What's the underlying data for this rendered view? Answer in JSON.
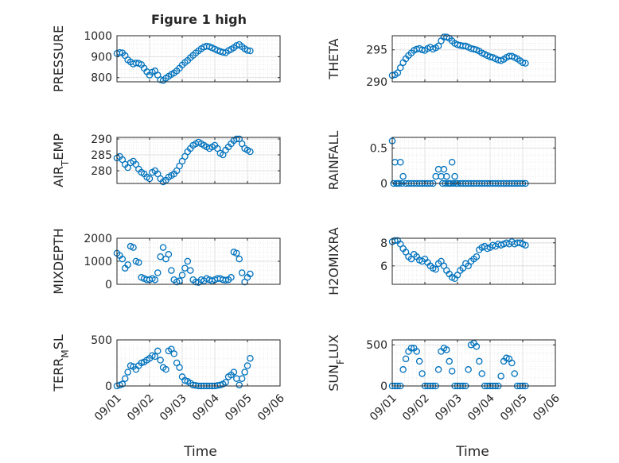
{
  "figure": {
    "title": "Figure 1 high",
    "xlabel": "Time",
    "x_ticks": [
      "09/01",
      "09/02",
      "09/03",
      "09/04",
      "09/05",
      "09/06"
    ],
    "marker_color": "#0072BD",
    "grid_color": "#d9d9d9",
    "axis_color": "#262626"
  },
  "chart_data": [
    {
      "type": "scatter",
      "ylabel": "PRESSURE",
      "ylim": [
        780,
        1000
      ],
      "yticks": [
        800,
        900,
        1000
      ],
      "grid": true,
      "x": [
        "09/01 00:00",
        "09/01 02:00",
        "09/01 04:00",
        "09/01 06:00",
        "09/01 08:00",
        "09/01 10:00",
        "09/01 12:00",
        "09/01 14:00",
        "09/01 16:00",
        "09/01 18:00",
        "09/01 20:00",
        "09/01 22:00",
        "09/02 00:00",
        "09/02 02:00",
        "09/02 04:00",
        "09/02 06:00",
        "09/02 08:00",
        "09/02 10:00",
        "09/02 12:00",
        "09/02 14:00",
        "09/02 16:00",
        "09/02 18:00",
        "09/02 20:00",
        "09/02 22:00",
        "09/03 00:00",
        "09/03 02:00",
        "09/03 04:00",
        "09/03 06:00",
        "09/03 08:00",
        "09/03 10:00",
        "09/03 12:00",
        "09/03 14:00",
        "09/03 16:00",
        "09/03 18:00",
        "09/03 20:00",
        "09/03 22:00",
        "09/04 00:00",
        "09/04 02:00",
        "09/04 04:00",
        "09/04 06:00",
        "09/04 08:00",
        "09/04 10:00",
        "09/04 12:00",
        "09/04 14:00",
        "09/04 16:00",
        "09/04 18:00",
        "09/04 20:00",
        "09/04 22:00",
        "09/05 00:00",
        "09/05 02:00"
      ],
      "y": [
        915,
        920,
        918,
        905,
        885,
        875,
        865,
        870,
        868,
        862,
        845,
        828,
        812,
        826,
        832,
        812,
        790,
        786,
        797,
        806,
        815,
        822,
        832,
        845,
        860,
        872,
        882,
        895,
        906,
        918,
        928,
        938,
        946,
        950,
        948,
        942,
        936,
        930,
        925,
        921,
        919,
        929,
        935,
        943,
        953,
        958,
        948,
        938,
        930,
        928
      ]
    },
    {
      "type": "scatter",
      "ylabel": "THETA",
      "ylim": [
        290,
        297.2
      ],
      "yticks": [
        290,
        295
      ],
      "grid": true,
      "x": [
        "09/01 00:00",
        "09/01 02:00",
        "09/01 04:00",
        "09/01 06:00",
        "09/01 08:00",
        "09/01 10:00",
        "09/01 12:00",
        "09/01 14:00",
        "09/01 16:00",
        "09/01 18:00",
        "09/01 20:00",
        "09/01 22:00",
        "09/02 00:00",
        "09/02 02:00",
        "09/02 04:00",
        "09/02 06:00",
        "09/02 08:00",
        "09/02 10:00",
        "09/02 12:00",
        "09/02 14:00",
        "09/02 16:00",
        "09/02 18:00",
        "09/02 20:00",
        "09/02 22:00",
        "09/03 00:00",
        "09/03 02:00",
        "09/03 04:00",
        "09/03 06:00",
        "09/03 08:00",
        "09/03 10:00",
        "09/03 12:00",
        "09/03 14:00",
        "09/03 16:00",
        "09/03 18:00",
        "09/03 20:00",
        "09/03 22:00",
        "09/04 00:00",
        "09/04 02:00",
        "09/04 04:00",
        "09/04 06:00",
        "09/04 08:00",
        "09/04 10:00",
        "09/04 12:00",
        "09/04 14:00",
        "09/04 16:00",
        "09/04 18:00",
        "09/04 20:00",
        "09/04 22:00",
        "09/05 00:00",
        "09/05 02:00"
      ],
      "y": [
        291.0,
        291.1,
        291.4,
        292.2,
        293.0,
        293.6,
        294.1,
        294.5,
        294.9,
        295.1,
        295.2,
        295.0,
        294.9,
        295.2,
        295.4,
        295.1,
        295.3,
        295.6,
        296.4,
        297.0,
        297.0,
        296.8,
        296.4,
        296.0,
        295.8,
        295.7,
        295.6,
        295.6,
        295.4,
        295.2,
        295.1,
        295.0,
        294.8,
        294.5,
        294.3,
        294.1,
        293.9,
        293.8,
        293.6,
        293.4,
        293.3,
        293.5,
        293.8,
        294.0,
        294.0,
        293.8,
        293.6,
        293.3,
        293.0,
        292.9
      ]
    },
    {
      "type": "scatter",
      "ylabel": "AIR",
      "ylabel_sub": "T",
      "ylabel_tail": "EMP",
      "ylim": [
        276,
        290.5
      ],
      "yticks": [
        280,
        285,
        290
      ],
      "grid": true,
      "x": [
        "09/01 00:00",
        "09/01 02:00",
        "09/01 04:00",
        "09/01 06:00",
        "09/01 08:00",
        "09/01 10:00",
        "09/01 12:00",
        "09/01 14:00",
        "09/01 16:00",
        "09/01 18:00",
        "09/01 20:00",
        "09/01 22:00",
        "09/02 00:00",
        "09/02 02:00",
        "09/02 04:00",
        "09/02 06:00",
        "09/02 08:00",
        "09/02 10:00",
        "09/02 12:00",
        "09/02 14:00",
        "09/02 16:00",
        "09/02 18:00",
        "09/02 20:00",
        "09/02 22:00",
        "09/03 00:00",
        "09/03 02:00",
        "09/03 04:00",
        "09/03 06:00",
        "09/03 08:00",
        "09/03 10:00",
        "09/03 12:00",
        "09/03 14:00",
        "09/03 16:00",
        "09/03 18:00",
        "09/03 20:00",
        "09/03 22:00",
        "09/04 00:00",
        "09/04 02:00",
        "09/04 04:00",
        "09/04 06:00",
        "09/04 08:00",
        "09/04 10:00",
        "09/04 12:00",
        "09/04 14:00",
        "09/04 16:00",
        "09/04 18:00",
        "09/04 20:00",
        "09/04 22:00",
        "09/05 00:00",
        "09/05 02:00"
      ],
      "y": [
        284.0,
        284.5,
        283.5,
        282.0,
        281.0,
        282.5,
        283.0,
        282.0,
        280.5,
        279.5,
        279.0,
        278.0,
        277.5,
        279.5,
        280.0,
        279.0,
        277.5,
        276.5,
        277.0,
        278.0,
        278.5,
        279.0,
        280.0,
        281.5,
        283.0,
        284.5,
        286.0,
        287.0,
        288.0,
        288.5,
        289.0,
        288.5,
        288.0,
        287.5,
        287.0,
        287.5,
        288.0,
        287.0,
        285.5,
        285.0,
        286.5,
        287.5,
        288.5,
        289.5,
        290.0,
        290.0,
        288.5,
        287.0,
        286.5,
        286.0
      ]
    },
    {
      "type": "scatter",
      "ylabel": "RAINFALL",
      "ylim": [
        0,
        0.65
      ],
      "yticks": [
        0,
        0.5
      ],
      "grid": true,
      "x": [
        "09/01 00:00",
        "09/01 02:00",
        "09/01 04:00",
        "09/01 06:00",
        "09/01 08:00",
        "09/01 10:00",
        "09/01 12:00",
        "09/01 14:00",
        "09/01 16:00",
        "09/01 18:00",
        "09/01 20:00",
        "09/01 22:00",
        "09/02 00:00",
        "09/02 02:00",
        "09/02 04:00",
        "09/02 06:00",
        "09/02 08:00",
        "09/02 10:00",
        "09/02 12:00",
        "09/02 14:00",
        "09/02 16:00",
        "09/02 18:00",
        "09/02 20:00",
        "09/02 22:00",
        "09/03 00:00",
        "09/03 02:00",
        "09/03 04:00",
        "09/03 06:00",
        "09/03 08:00",
        "09/03 10:00",
        "09/03 12:00",
        "09/03 14:00",
        "09/03 16:00",
        "09/03 18:00",
        "09/03 20:00",
        "09/03 22:00",
        "09/04 00:00",
        "09/04 02:00",
        "09/04 04:00",
        "09/04 06:00",
        "09/04 08:00",
        "09/04 10:00",
        "09/04 12:00",
        "09/04 14:00",
        "09/04 16:00",
        "09/04 18:00",
        "09/04 20:00",
        "09/04 22:00",
        "09/05 00:00",
        "09/05 02:00",
        "09/01 01:00",
        "09/01 03:00",
        "09/01 05:00",
        "09/01 07:00",
        "09/02 13:00",
        "09/02 15:00",
        "09/02 17:00",
        "09/02 19:00",
        "09/02 21:00",
        "09/02 23:00"
      ],
      "y": [
        0.6,
        0.3,
        0.0,
        0.3,
        0.1,
        0,
        0,
        0,
        0,
        0,
        0,
        0,
        0,
        0,
        0,
        0,
        0.1,
        0.2,
        0.1,
        0.2,
        0.1,
        0,
        0.3,
        0.1,
        0,
        0,
        0,
        0,
        0,
        0,
        0,
        0,
        0,
        0,
        0,
        0,
        0,
        0,
        0,
        0,
        0,
        0,
        0,
        0,
        0,
        0,
        0,
        0,
        0,
        0,
        0,
        0,
        0,
        0,
        0,
        0,
        0,
        0,
        0,
        0
      ]
    },
    {
      "type": "scatter",
      "ylabel": "MIXDEPTH",
      "ylim": [
        0,
        2000
      ],
      "yticks": [
        0,
        1000,
        2000
      ],
      "grid": true,
      "x": [
        "09/01 00:00",
        "09/01 02:00",
        "09/01 04:00",
        "09/01 06:00",
        "09/01 08:00",
        "09/01 10:00",
        "09/01 12:00",
        "09/01 14:00",
        "09/01 16:00",
        "09/01 18:00",
        "09/01 20:00",
        "09/01 22:00",
        "09/02 00:00",
        "09/02 02:00",
        "09/02 04:00",
        "09/02 06:00",
        "09/02 08:00",
        "09/02 10:00",
        "09/02 12:00",
        "09/02 14:00",
        "09/02 16:00",
        "09/02 18:00",
        "09/02 20:00",
        "09/02 22:00",
        "09/03 00:00",
        "09/03 02:00",
        "09/03 04:00",
        "09/03 06:00",
        "09/03 08:00",
        "09/03 10:00",
        "09/03 12:00",
        "09/03 14:00",
        "09/03 16:00",
        "09/03 18:00",
        "09/03 20:00",
        "09/03 22:00",
        "09/04 00:00",
        "09/04 02:00",
        "09/04 04:00",
        "09/04 06:00",
        "09/04 08:00",
        "09/04 10:00",
        "09/04 12:00",
        "09/04 14:00",
        "09/04 16:00",
        "09/04 18:00",
        "09/04 20:00",
        "09/04 22:00",
        "09/05 00:00",
        "09/05 02:00"
      ],
      "y": [
        1350,
        1250,
        1100,
        700,
        850,
        1650,
        1600,
        1000,
        950,
        300,
        250,
        200,
        200,
        250,
        200,
        500,
        1200,
        1600,
        1100,
        1300,
        600,
        200,
        100,
        150,
        400,
        700,
        1000,
        600,
        200,
        100,
        80,
        200,
        150,
        250,
        200,
        150,
        200,
        250,
        250,
        200,
        180,
        200,
        300,
        1400,
        1350,
        1100,
        500,
        100,
        300,
        450
      ]
    },
    {
      "type": "scatter",
      "ylabel": "H2OMIXRA",
      "ylim": [
        4.4,
        8.4
      ],
      "yticks": [
        6,
        8
      ],
      "grid": true,
      "x": [
        "09/01 00:00",
        "09/01 02:00",
        "09/01 04:00",
        "09/01 06:00",
        "09/01 08:00",
        "09/01 10:00",
        "09/01 12:00",
        "09/01 14:00",
        "09/01 16:00",
        "09/01 18:00",
        "09/01 20:00",
        "09/01 22:00",
        "09/02 00:00",
        "09/02 02:00",
        "09/02 04:00",
        "09/02 06:00",
        "09/02 08:00",
        "09/02 10:00",
        "09/02 12:00",
        "09/02 14:00",
        "09/02 16:00",
        "09/02 18:00",
        "09/02 20:00",
        "09/02 22:00",
        "09/03 00:00",
        "09/03 02:00",
        "09/03 04:00",
        "09/03 06:00",
        "09/03 08:00",
        "09/03 10:00",
        "09/03 12:00",
        "09/03 14:00",
        "09/03 16:00",
        "09/03 18:00",
        "09/03 20:00",
        "09/03 22:00",
        "09/04 00:00",
        "09/04 02:00",
        "09/04 04:00",
        "09/04 06:00",
        "09/04 08:00",
        "09/04 10:00",
        "09/04 12:00",
        "09/04 14:00",
        "09/04 16:00",
        "09/04 18:00",
        "09/04 20:00",
        "09/04 22:00",
        "09/05 00:00",
        "09/05 02:00"
      ],
      "y": [
        8.1,
        8.2,
        8.2,
        7.9,
        7.5,
        7.2,
        6.8,
        6.6,
        7.0,
        6.8,
        6.5,
        6.4,
        6.6,
        6.3,
        6.0,
        5.8,
        5.7,
        6.2,
        6.4,
        6.0,
        5.6,
        5.3,
        5.0,
        4.9,
        5.2,
        5.6,
        5.8,
        6.2,
        6.0,
        6.4,
        6.6,
        6.8,
        7.4,
        7.6,
        7.7,
        7.5,
        7.6,
        7.8,
        7.7,
        7.9,
        7.8,
        7.9,
        8.0,
        7.9,
        8.1,
        7.9,
        8.0,
        8.0,
        7.9,
        7.8
      ]
    },
    {
      "type": "scatter",
      "ylabel": "TERR",
      "ylabel_sub": "M",
      "ylabel_tail": "SL",
      "ylim": [
        0,
        500
      ],
      "yticks": [
        0,
        500
      ],
      "grid": true,
      "x": [
        "09/01 00:00",
        "09/01 02:00",
        "09/01 04:00",
        "09/01 06:00",
        "09/01 08:00",
        "09/01 10:00",
        "09/01 12:00",
        "09/01 14:00",
        "09/01 16:00",
        "09/01 18:00",
        "09/01 20:00",
        "09/01 22:00",
        "09/02 00:00",
        "09/02 02:00",
        "09/02 04:00",
        "09/02 06:00",
        "09/02 08:00",
        "09/02 10:00",
        "09/02 12:00",
        "09/02 14:00",
        "09/02 16:00",
        "09/02 18:00",
        "09/02 20:00",
        "09/02 22:00",
        "09/03 00:00",
        "09/03 02:00",
        "09/03 04:00",
        "09/03 06:00",
        "09/03 08:00",
        "09/03 10:00",
        "09/03 12:00",
        "09/03 14:00",
        "09/03 16:00",
        "09/03 18:00",
        "09/03 20:00",
        "09/03 22:00",
        "09/04 00:00",
        "09/04 02:00",
        "09/04 04:00",
        "09/04 06:00",
        "09/04 08:00",
        "09/04 10:00",
        "09/04 12:00",
        "09/04 14:00",
        "09/04 16:00",
        "09/04 18:00",
        "09/04 20:00",
        "09/04 22:00",
        "09/05 00:00",
        "09/05 02:00"
      ],
      "y": [
        0,
        10,
        20,
        80,
        150,
        220,
        210,
        180,
        220,
        250,
        260,
        280,
        300,
        330,
        320,
        380,
        280,
        200,
        180,
        380,
        400,
        350,
        250,
        200,
        100,
        60,
        50,
        30,
        10,
        5,
        0,
        0,
        0,
        0,
        0,
        0,
        0,
        5,
        10,
        20,
        40,
        100,
        120,
        150,
        80,
        10,
        80,
        150,
        220,
        300
      ]
    },
    {
      "type": "scatter",
      "ylabel": "SUN",
      "ylabel_sub": "F",
      "ylabel_tail": "LUX",
      "ylim": [
        0,
        560
      ],
      "yticks": [
        0,
        500
      ],
      "grid": true,
      "x": [
        "09/01 00:00",
        "09/01 02:00",
        "09/01 04:00",
        "09/01 06:00",
        "09/01 08:00",
        "09/01 10:00",
        "09/01 12:00",
        "09/01 14:00",
        "09/01 16:00",
        "09/01 18:00",
        "09/01 20:00",
        "09/01 22:00",
        "09/02 00:00",
        "09/02 02:00",
        "09/02 04:00",
        "09/02 06:00",
        "09/02 08:00",
        "09/02 10:00",
        "09/02 12:00",
        "09/02 14:00",
        "09/02 16:00",
        "09/02 18:00",
        "09/02 20:00",
        "09/02 22:00",
        "09/03 00:00",
        "09/03 02:00",
        "09/03 04:00",
        "09/03 06:00",
        "09/03 08:00",
        "09/03 10:00",
        "09/03 12:00",
        "09/03 14:00",
        "09/03 16:00",
        "09/03 18:00",
        "09/03 20:00",
        "09/03 22:00",
        "09/04 00:00",
        "09/04 02:00",
        "09/04 04:00",
        "09/04 06:00",
        "09/04 08:00",
        "09/04 10:00",
        "09/04 12:00",
        "09/04 14:00",
        "09/04 16:00",
        "09/04 18:00",
        "09/04 20:00",
        "09/04 22:00",
        "09/05 00:00",
        "09/05 02:00"
      ],
      "y": [
        0,
        0,
        0,
        0,
        200,
        330,
        420,
        460,
        460,
        420,
        300,
        150,
        0,
        0,
        0,
        0,
        0,
        200,
        420,
        460,
        440,
        300,
        180,
        0,
        0,
        0,
        0,
        0,
        200,
        500,
        520,
        480,
        300,
        150,
        0,
        0,
        0,
        0,
        0,
        0,
        120,
        300,
        340,
        330,
        280,
        150,
        0,
        0,
        0,
        0
      ]
    }
  ]
}
